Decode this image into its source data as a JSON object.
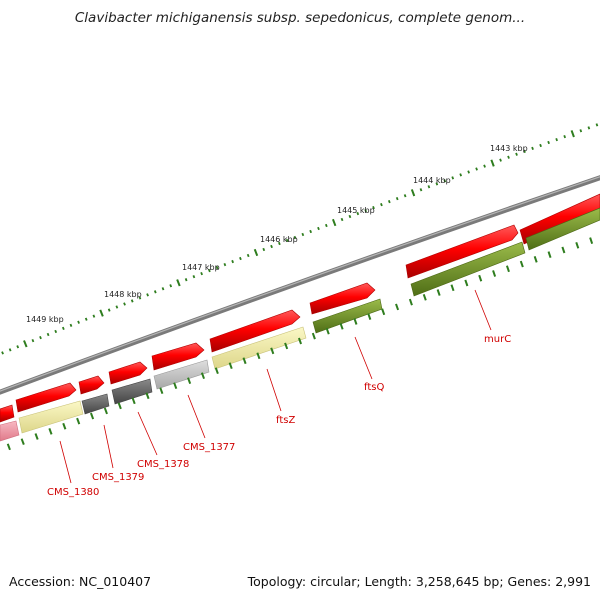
{
  "title": "Clavibacter michiganensis subsp. sepedonicus, complete genom...",
  "footer": {
    "accession": "Accession: NC_010407",
    "summary": "Topology: circular; Length: 3,258,645 bp; Genes: 2,991"
  },
  "scale_labels": [
    "1443 kbp",
    "1444 kbp",
    "1445 kbp",
    "1446 kbp",
    "1447 kbp",
    "1448 kbp",
    "1449 kbp"
  ],
  "gene_labels": [
    "murC",
    "ftsQ",
    "ftsZ",
    "CMS_1377",
    "CMS_1378",
    "CMS_1379",
    "CMS_1380"
  ],
  "colors": {
    "backbone": "#7d7d7d",
    "gene_red": "#ee1111",
    "cds_olive": "#6b8e23",
    "cds_yellow": "#eeea9a",
    "cds_dark": "#6a6a6a",
    "cds_lightgray": "#c4c4c4",
    "cds_pink": "#f09aa8",
    "tick_green": "#2e7d1e",
    "label_red": "#d00000"
  }
}
